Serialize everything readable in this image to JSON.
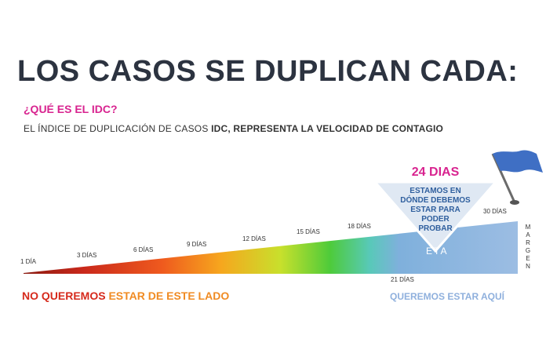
{
  "title": "LOS CASOS SE DUPLICAN CADA:",
  "question": "¿QUÉ ES EL IDC?",
  "definition": {
    "prefix": "EL ÍNDICE DE DUPLICACIÓN DE CASOS ",
    "bold": "IDC, REPRESENTA LA VELOCIDAD DE CONTAGIO"
  },
  "days": [
    "1 DÍA",
    "3 DÍAS",
    "6 DÍAS",
    "9 DÍAS",
    "12 DÍAS",
    "15 DÍAS",
    "18 DÍAS",
    "21 DÍAS",
    "30 DÍAS"
  ],
  "goal": {
    "days": "24 DIAS",
    "text_lines": [
      "ESTAMOS EN",
      "DÓNDE DEBEMOS",
      "ESTAR PARA",
      "PODER",
      "PROBAR"
    ]
  },
  "meta_label": "ETA",
  "margin_letters": [
    "M",
    "A",
    "R",
    "G",
    "E",
    "N"
  ],
  "bottom_left": {
    "part1": "NO QUEREMOS ",
    "part2": "ESTAR DE ESTE LADO"
  },
  "bottom_right": "QUEREMOS ESTAR AQUÍ",
  "colors": {
    "title": "#2c3340",
    "magenta": "#d8238f",
    "red": "#d62a1c",
    "orange": "#f08b23",
    "light_blue": "#8fb0dd",
    "goal_blue": "#2f5f9e",
    "flag_blue": "#3f6fc4"
  }
}
